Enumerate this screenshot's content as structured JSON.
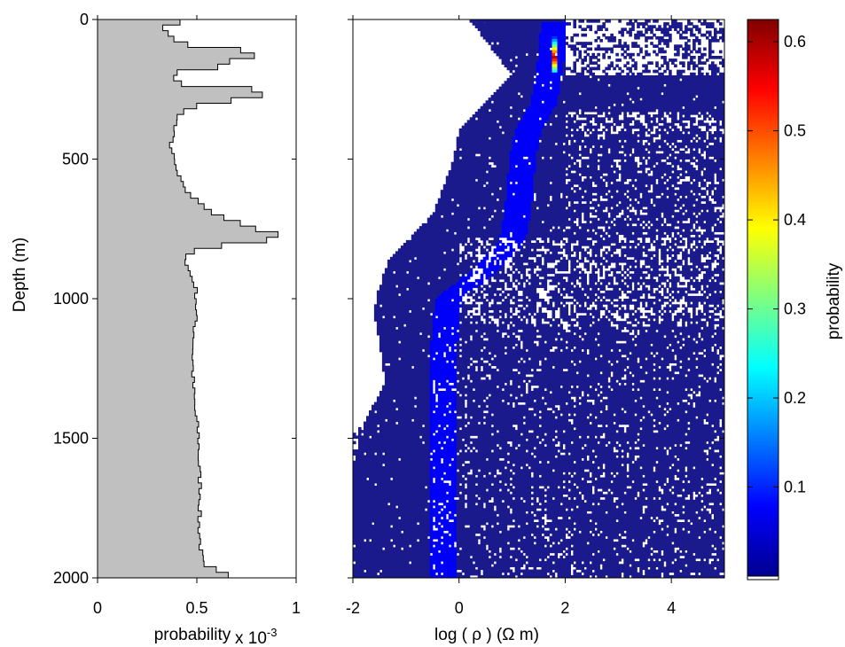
{
  "chart_data": [
    {
      "type": "histogram",
      "ylabel": "Depth (m)",
      "xlabel": "probability",
      "x_multiplier_text": "x 10",
      "x_multiplier_exponent": "-3",
      "xlim": [
        0,
        1
      ],
      "ylim": [
        0,
        2000
      ],
      "y_reversed": true,
      "xticks": [
        "0",
        "0.5",
        "1"
      ],
      "yticks": [
        "0",
        "500",
        "1000",
        "1500",
        "2000"
      ],
      "fill_color": "#c0c0c0",
      "edge_color": "#000000",
      "grid": false,
      "bin_width_m": 20,
      "depth_profile": [
        {
          "depth": 0,
          "value": 0.55
        },
        {
          "depth": 20,
          "value": 0.3
        },
        {
          "depth": 40,
          "value": 0.34
        },
        {
          "depth": 60,
          "value": 0.38
        },
        {
          "depth": 80,
          "value": 0.4
        },
        {
          "depth": 100,
          "value": 0.5
        },
        {
          "depth": 110,
          "value": 0.72
        },
        {
          "depth": 120,
          "value": 0.8
        },
        {
          "depth": 135,
          "value": 0.79
        },
        {
          "depth": 150,
          "value": 0.66
        },
        {
          "depth": 170,
          "value": 0.6
        },
        {
          "depth": 190,
          "value": 0.4
        },
        {
          "depth": 210,
          "value": 0.38
        },
        {
          "depth": 230,
          "value": 0.42
        },
        {
          "depth": 245,
          "value": 0.72
        },
        {
          "depth": 260,
          "value": 0.87
        },
        {
          "depth": 280,
          "value": 0.8
        },
        {
          "depth": 300,
          "value": 0.55
        },
        {
          "depth": 320,
          "value": 0.44
        },
        {
          "depth": 360,
          "value": 0.4
        },
        {
          "depth": 400,
          "value": 0.38
        },
        {
          "depth": 450,
          "value": 0.37
        },
        {
          "depth": 500,
          "value": 0.38
        },
        {
          "depth": 550,
          "value": 0.4
        },
        {
          "depth": 600,
          "value": 0.43
        },
        {
          "depth": 650,
          "value": 0.5
        },
        {
          "depth": 700,
          "value": 0.6
        },
        {
          "depth": 730,
          "value": 0.72
        },
        {
          "depth": 750,
          "value": 0.8
        },
        {
          "depth": 770,
          "value": 0.9
        },
        {
          "depth": 790,
          "value": 0.85
        },
        {
          "depth": 810,
          "value": 0.62
        },
        {
          "depth": 830,
          "value": 0.48
        },
        {
          "depth": 860,
          "value": 0.44
        },
        {
          "depth": 900,
          "value": 0.46
        },
        {
          "depth": 950,
          "value": 0.49
        },
        {
          "depth": 1000,
          "value": 0.5
        },
        {
          "depth": 1100,
          "value": 0.49
        },
        {
          "depth": 1200,
          "value": 0.48
        },
        {
          "depth": 1300,
          "value": 0.48
        },
        {
          "depth": 1400,
          "value": 0.49
        },
        {
          "depth": 1500,
          "value": 0.51
        },
        {
          "depth": 1600,
          "value": 0.51
        },
        {
          "depth": 1700,
          "value": 0.52
        },
        {
          "depth": 1800,
          "value": 0.51
        },
        {
          "depth": 1900,
          "value": 0.52
        },
        {
          "depth": 1960,
          "value": 0.53
        },
        {
          "depth": 1980,
          "value": 0.65
        },
        {
          "depth": 2000,
          "value": 0.65
        }
      ]
    },
    {
      "type": "heatmap",
      "xlabel": "log ( ρ ) (Ω  m)",
      "xlim": [
        -2,
        5
      ],
      "ylim": [
        0,
        2000
      ],
      "y_reversed": true,
      "xticks": [
        "-2",
        "0",
        "2",
        "4"
      ],
      "yticks_shown": false,
      "colormap": "jet",
      "background_color": "#1a1a8c",
      "empty_cell_color": "#ffffff",
      "ridge": [
        {
          "depth": 0,
          "value": 1.8
        },
        {
          "depth": 100,
          "value": 1.75
        },
        {
          "depth": 200,
          "value": 1.7
        },
        {
          "depth": 300,
          "value": 1.6
        },
        {
          "depth": 400,
          "value": 1.3
        },
        {
          "depth": 500,
          "value": 1.2
        },
        {
          "depth": 600,
          "value": 1.15
        },
        {
          "depth": 700,
          "value": 1.1
        },
        {
          "depth": 800,
          "value": 1.0
        },
        {
          "depth": 900,
          "value": 0.5
        },
        {
          "depth": 1000,
          "value": -0.2
        },
        {
          "depth": 1200,
          "value": -0.3
        },
        {
          "depth": 1500,
          "value": -0.3
        },
        {
          "depth": 2000,
          "value": -0.3
        }
      ],
      "left_boundary": [
        {
          "depth": 0,
          "value": 0.2
        },
        {
          "depth": 200,
          "value": 1.0
        },
        {
          "depth": 300,
          "value": 0.5
        },
        {
          "depth": 400,
          "value": 0.0
        },
        {
          "depth": 500,
          "value": -0.1
        },
        {
          "depth": 600,
          "value": -0.3
        },
        {
          "depth": 700,
          "value": -0.5
        },
        {
          "depth": 780,
          "value": -0.9
        },
        {
          "depth": 850,
          "value": -1.3
        },
        {
          "depth": 950,
          "value": -1.5
        },
        {
          "depth": 1050,
          "value": -1.6
        },
        {
          "depth": 1150,
          "value": -1.5
        },
        {
          "depth": 1300,
          "value": -1.4
        },
        {
          "depth": 1450,
          "value": -1.8
        },
        {
          "depth": 1600,
          "value": -2.0
        },
        {
          "depth": 2000,
          "value": -2.0
        }
      ],
      "hot_spot": {
        "depth_range": [
          80,
          180
        ],
        "value": 1.8,
        "peak_probability": 0.62
      },
      "noise_band": {
        "depth_range": [
          0,
          200
        ],
        "from_value": 2.0
      }
    },
    {
      "type": "colorbar",
      "label": "probability",
      "ticks": [
        "0.1",
        "0.2",
        "0.3",
        "0.4",
        "0.5",
        "0.6"
      ],
      "range": [
        0.0,
        0.625
      ],
      "colormap": "jet"
    }
  ]
}
